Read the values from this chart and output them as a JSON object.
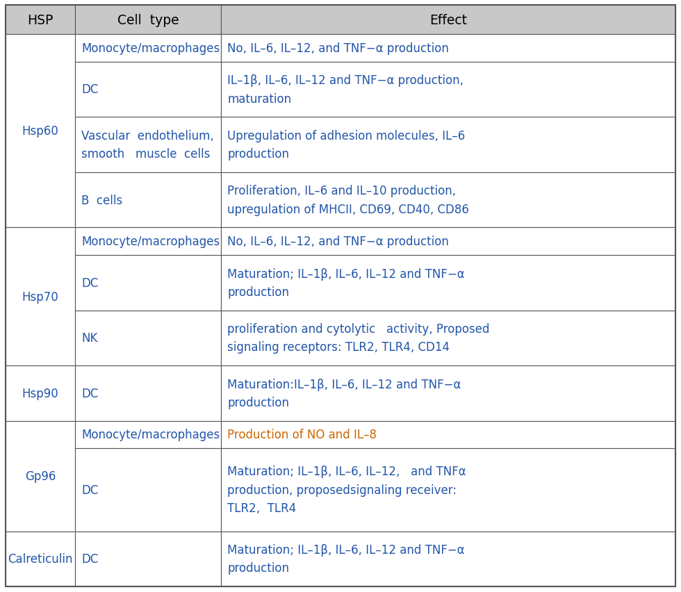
{
  "header_bg": "#c8c8c8",
  "cell_bg": "#ffffff",
  "border_color": "#555555",
  "blue_color": "#2255aa",
  "orange_color": "#cc6600",
  "black_color": "#111111",
  "header_fontsize": 13.5,
  "cell_fontsize": 12.0,
  "col_headers": [
    "HSP",
    "Cell  type",
    "Effect"
  ],
  "rows": [
    {
      "hsp": "Hsp60",
      "cells": [
        {
          "cell_type": "Monocyte/macrophages",
          "effect": "No, IL–6, IL–12, and TNF−α production",
          "effect_col": "blue",
          "ct_col": "blue",
          "rh": 1
        },
        {
          "cell_type": "DC",
          "effect": "IL–1β, IL–6, IL–12 and TNF−α production,\nmaturation",
          "effect_col": "blue",
          "ct_col": "blue",
          "rh": 2
        },
        {
          "cell_type": "Vascular  endothelium,\nsmooth   muscle  cells",
          "effect": "Upregulation of adhesion molecules, IL–6\nproduction",
          "effect_col": "blue",
          "ct_col": "blue",
          "rh": 2
        },
        {
          "cell_type": "B  cells",
          "effect": "Proliferation, IL–6 and IL–10 production,\nupregulation of MHCII, CD69, CD40, CD86",
          "effect_col": "blue",
          "ct_col": "blue",
          "rh": 2
        }
      ]
    },
    {
      "hsp": "Hsp70",
      "cells": [
        {
          "cell_type": "Monocyte/macrophages",
          "effect": "No, IL–6, IL–12, and TNF−α production",
          "effect_col": "blue",
          "ct_col": "blue",
          "rh": 1
        },
        {
          "cell_type": "DC",
          "effect": "Maturation; IL–1β, IL–6, IL–12 and TNF−α\nproduction",
          "effect_col": "blue",
          "ct_col": "blue",
          "rh": 2
        },
        {
          "cell_type": "NK",
          "effect": "proliferation and cytolytic   activity, Proposed\nsignaling receptors: TLR2, TLR4, CD14",
          "effect_col": "blue",
          "ct_col": "blue",
          "rh": 2
        }
      ]
    },
    {
      "hsp": "Hsp90",
      "cells": [
        {
          "cell_type": "DC",
          "effect": "Maturation:IL–1β, IL–6, IL–12 and TNF−α\nproduction",
          "effect_col": "blue",
          "ct_col": "blue",
          "rh": 2
        }
      ]
    },
    {
      "hsp": "Gp96",
      "cells": [
        {
          "cell_type": "Monocyte/macrophages",
          "effect": "Production of NO and IL–8",
          "effect_col": "orange",
          "ct_col": "blue",
          "rh": 1
        },
        {
          "cell_type": "DC",
          "effect": "Maturation; IL–1β, IL–6, IL–12,   and TNFα\nproduction, proposedsignaling receiver:\nTLR2,  TLR4",
          "effect_col": "blue",
          "ct_col": "blue",
          "rh": 3
        }
      ]
    },
    {
      "hsp": "Calreticulin",
      "cells": [
        {
          "cell_type": "DC",
          "effect": "Maturation; IL–1β, IL–6, IL–12 and TNF−α\nproduction",
          "effect_col": "blue",
          "ct_col": "blue",
          "rh": 2
        }
      ]
    }
  ]
}
